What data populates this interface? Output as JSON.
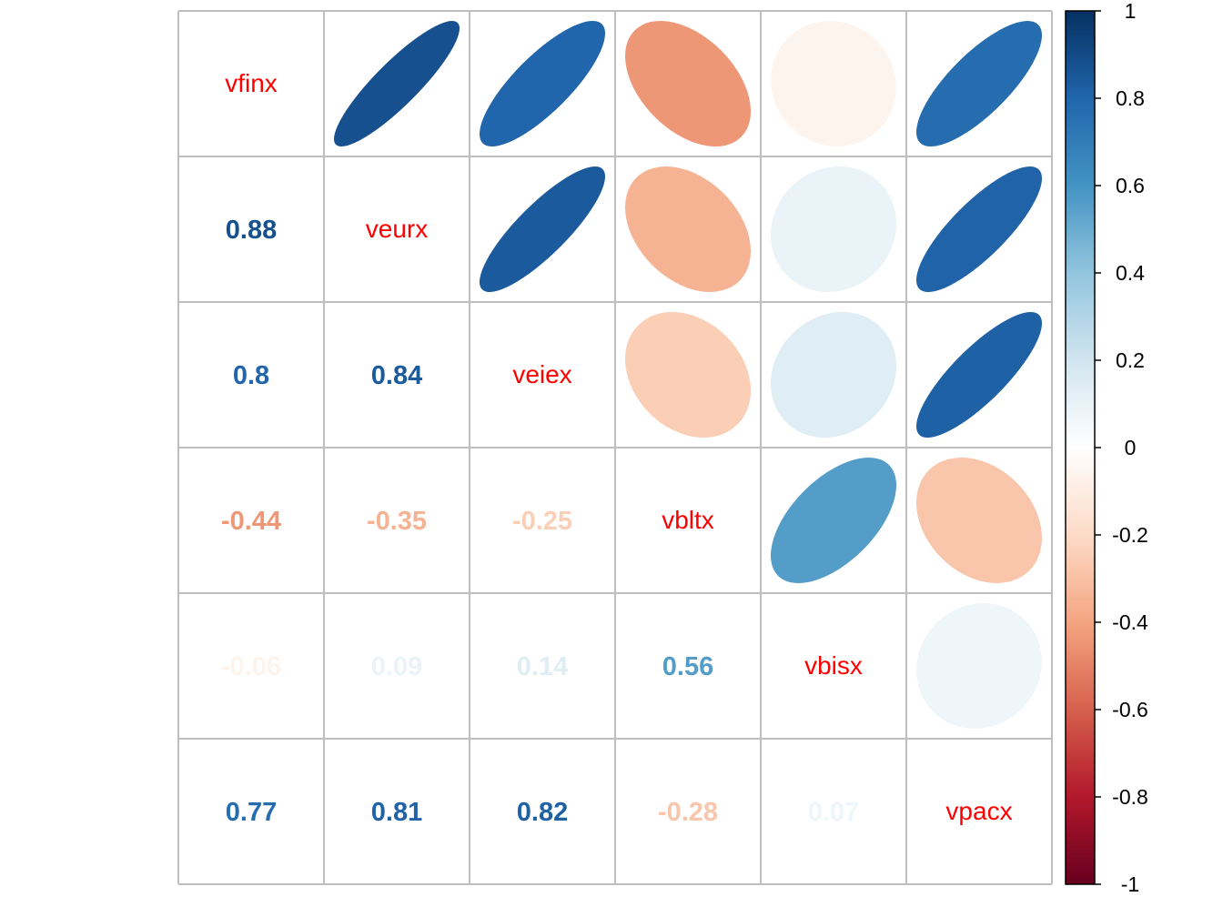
{
  "chart_data": {
    "type": "heatmap",
    "subtype": "correlation-matrix",
    "variables": [
      "vfinx",
      "veurx",
      "veiex",
      "vbltx",
      "vbisx",
      "vpacx"
    ],
    "matrix": [
      [
        1,
        0.88,
        0.8,
        -0.44,
        -0.06,
        0.77
      ],
      [
        0.88,
        1,
        0.84,
        -0.35,
        0.09,
        0.81
      ],
      [
        0.8,
        0.84,
        1,
        -0.25,
        0.14,
        0.82
      ],
      [
        -0.44,
        -0.35,
        -0.25,
        1,
        0.56,
        -0.28
      ],
      [
        -0.06,
        0.09,
        0.14,
        0.56,
        1,
        0.07
      ],
      [
        0.77,
        0.81,
        0.82,
        -0.28,
        0.07,
        1
      ]
    ],
    "lower_labels": [
      [
        null,
        null,
        null,
        null,
        null,
        null
      ],
      [
        "0.88",
        null,
        null,
        null,
        null,
        null
      ],
      [
        "0.8",
        "0.84",
        null,
        null,
        null,
        null
      ],
      [
        "-0.44",
        "-0.35",
        "-0.25",
        null,
        null,
        null
      ],
      [
        "-0.06",
        "0.09",
        "0.14",
        "0.56",
        null,
        null
      ],
      [
        "0.77",
        "0.81",
        "0.82",
        "-0.28",
        "0.07",
        null
      ]
    ],
    "upper_method": "ellipse",
    "lower_method": "number",
    "diagonal": "variable names",
    "label_color": "#FF0000",
    "colorbar": {
      "range": [
        -1,
        1
      ],
      "ticks": [
        "1",
        "0.8",
        "0.6",
        "0.4",
        "0.2",
        "0",
        "-0.2",
        "-0.4",
        "-0.6",
        "-0.8",
        "-1"
      ],
      "placement": "right",
      "palette": [
        "#67001F",
        "#B2182B",
        "#D6604D",
        "#F4A582",
        "#FDDBC7",
        "#FFFFFF",
        "#D1E5F0",
        "#92C5DE",
        "#4393C3",
        "#2166AC",
        "#053061"
      ]
    }
  }
}
